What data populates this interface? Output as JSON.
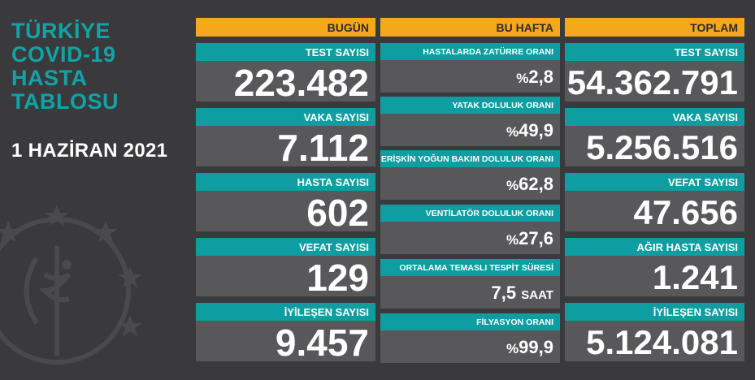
{
  "left": {
    "title_lines": [
      "TÜRKİYE",
      "COVID-19",
      "HASTA",
      "TABLOSU"
    ],
    "date": "1 HAZİRAN 2021"
  },
  "today": {
    "header": "BUGÜN",
    "items": [
      {
        "label": "TEST SAYISI",
        "value": "223.482"
      },
      {
        "label": "VAKA SAYISI",
        "value": "7.112"
      },
      {
        "label": "HASTA SAYISI",
        "value": "602"
      },
      {
        "label": "VEFAT SAYISI",
        "value": "129"
      },
      {
        "label": "İYİLEŞEN SAYISI",
        "value": "9.457"
      }
    ]
  },
  "week": {
    "header": "BU HAFTA",
    "items": [
      {
        "label": "HASTALARDA ZATÜRRE ORANI",
        "prefix": "%",
        "value": "2,8",
        "unit": ""
      },
      {
        "label": "YATAK DOLULUK ORANI",
        "prefix": "%",
        "value": "49,9",
        "unit": ""
      },
      {
        "label": "ERİŞKİN YOĞUN BAKIM DOLULUK ORANI",
        "prefix": "%",
        "value": "62,8",
        "unit": ""
      },
      {
        "label": "VENTİLATÖR DOLULUK ORANI",
        "prefix": "%",
        "value": "27,6",
        "unit": ""
      },
      {
        "label": "ORTALAMA TEMASLI TESPİT SÜRESİ",
        "prefix": "",
        "value": "7,5",
        "unit": "SAAT"
      },
      {
        "label": "FİLYASYON ORANI",
        "prefix": "%",
        "value": "99,9",
        "unit": ""
      }
    ]
  },
  "total": {
    "header": "TOPLAM",
    "items": [
      {
        "label": "TEST SAYISI",
        "value": "54.362.791"
      },
      {
        "label": "VAKA SAYISI",
        "value": "5.256.516"
      },
      {
        "label": "VEFAT SAYISI",
        "value": "47.656"
      },
      {
        "label": "AĞIR HASTA SAYISI",
        "value": "1.241"
      },
      {
        "label": "İYİLEŞEN SAYISI",
        "value": "5.124.081"
      }
    ]
  },
  "colors": {
    "background": "#3a3a3c",
    "teal": "#0e9ea1",
    "orange": "#f6a81d",
    "value_box": "#58585a"
  }
}
